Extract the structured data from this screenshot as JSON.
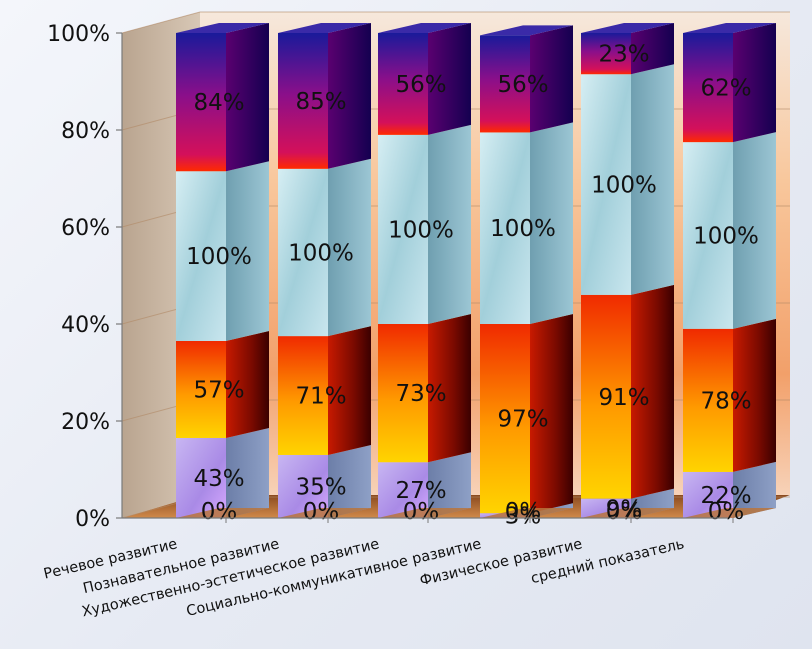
{
  "chart_data": {
    "type": "bar",
    "stacked": "percent",
    "three_d": true,
    "categories": [
      "Речевое развитие",
      "Познавательное развитие",
      "Художественно-эстетическое развитие",
      "Социально-коммуникативное развитие",
      "Физическое развитие",
      "средний показатель"
    ],
    "series": [
      {
        "labels": [
          "0%",
          "0%",
          "0%",
          "0%",
          "0%",
          "0%"
        ],
        "share": [
          0,
          0,
          0,
          0,
          0,
          0
        ],
        "color": "#b07a4a"
      },
      {
        "labels": [
          "43%",
          "35%",
          "27%",
          "3%",
          "9%",
          "22%"
        ],
        "share": [
          16.5,
          13,
          11.5,
          1,
          4,
          9.5
        ],
        "color": "#b9a3e6"
      },
      {
        "labels": [
          "57%",
          "71%",
          "73%",
          "97%",
          "91%",
          "78%"
        ],
        "share": [
          20,
          24.5,
          28.5,
          39,
          42,
          29.5
        ],
        "color": "#ff8a00"
      },
      {
        "labels": [
          "100%",
          "100%",
          "100%",
          "100%",
          "100%",
          "100%"
        ],
        "share": [
          35,
          34.5,
          39,
          39.5,
          45.5,
          38.5
        ],
        "color": "#a9d6e0"
      },
      {
        "labels": [
          "84%",
          "85%",
          "56%",
          "56%",
          "23%",
          "62%"
        ],
        "share": [
          28.5,
          28,
          21,
          20,
          8.5,
          22.5
        ],
        "color": "#8a0a6a"
      }
    ],
    "y_ticks": [
      "0%",
      "20%",
      "40%",
      "60%",
      "80%",
      "100%"
    ],
    "ylim": [
      0,
      100
    ],
    "legend": "none",
    "grid": true
  }
}
